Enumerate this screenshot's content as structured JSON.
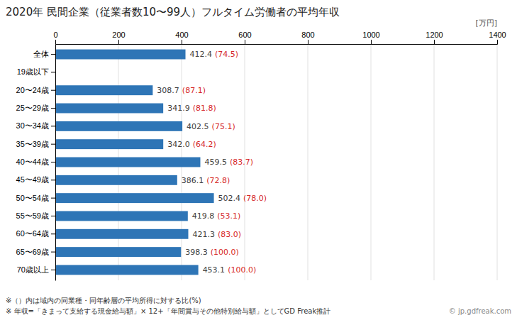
{
  "chart_data": {
    "type": "bar",
    "orientation": "horizontal",
    "title": "2020年 民間企業（従業者数10〜99人）フルタイム労働者の平均年収",
    "annotations": [
      "[万円]",
      "※（）内は域内の同業種・同年齢層の平均所得に対する比(%)",
      "※ 年収=「きまって支給する現金給与額」× 12+「年間賞与その他特別給与額」としてGD Freak推計",
      "© jp.gdfreak.com"
    ],
    "categories": [
      "全体",
      "19歳以下",
      "20〜24歳",
      "25〜29歳",
      "30〜34歳",
      "35〜39歳",
      "40〜44歳",
      "45〜49歳",
      "50〜54歳",
      "55〜59歳",
      "60〜64歳",
      "65〜69歳",
      "70歳以上"
    ],
    "values": [
      412.4,
      0,
      308.7,
      341.9,
      402.5,
      342.0,
      459.5,
      386.1,
      502.4,
      419.8,
      421.3,
      398.3,
      453.1
    ],
    "value_labels": [
      "412.4",
      null,
      "308.7",
      "341.9",
      "402.5",
      "342.0",
      "459.5",
      "386.1",
      "502.4",
      "419.8",
      "421.3",
      "398.3",
      "453.1"
    ],
    "ratios": [
      74.5,
      null,
      87.1,
      81.8,
      75.1,
      64.2,
      83.7,
      72.8,
      78.0,
      53.1,
      83.0,
      100.0,
      100.0
    ],
    "ratio_labels": [
      "(74.5)",
      null,
      "(87.1)",
      "(81.8)",
      "(75.1)",
      "(64.2)",
      "(83.7)",
      "(72.8)",
      "(78.0)",
      "(53.1)",
      "(83.0)",
      "(100.0)",
      "(100.0)"
    ],
    "color": "#2E75B6",
    "xlim": [
      0,
      1400
    ],
    "xticks": [
      0,
      200,
      400,
      600,
      800,
      1000,
      1200,
      1400
    ],
    "grid": true,
    "data_labels": true
  }
}
